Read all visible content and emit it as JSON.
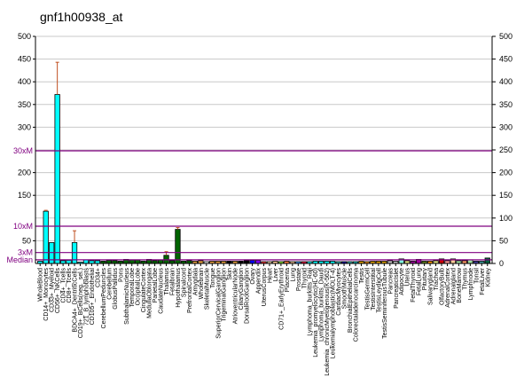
{
  "chart_data": {
    "type": "bar",
    "title": "gnf1h00938_at",
    "ylim": [
      0,
      500
    ],
    "yticks_left": [
      "500",
      "450",
      "400",
      "350",
      "300",
      "200",
      "150",
      "50"
    ],
    "yticks_left_values": [
      500,
      450,
      400,
      350,
      300,
      200,
      150,
      50
    ],
    "yticks_right": [
      "500",
      "450",
      "400",
      "350",
      "300",
      "250",
      "200",
      "150",
      "100",
      "50",
      "0"
    ],
    "yticks_right_values": [
      500,
      450,
      400,
      350,
      300,
      250,
      200,
      150,
      100,
      50,
      0
    ],
    "grid": true,
    "reference_lines": [
      {
        "label": "30xM",
        "value": 248
      },
      {
        "label": "10xM",
        "value": 82
      },
      {
        "label": "3xM",
        "value": 24
      },
      {
        "label": "Median",
        "value": 8
      }
    ],
    "reference_color": "#800080",
    "categories": [
      "WholeBlood",
      "CD14+_Monocytes",
      "CD33+_Myeloid",
      "CD56+_NKCells",
      "CD4+_Tcells",
      "CD8+_Tcells",
      "BDCA4+_DentriticCells",
      "CD19+_BCells(neg._sel.)",
      "721_B_lymphoblasts",
      "CD105+_Endothelial",
      "CD34+",
      "CerebellumPeduncles",
      "Cerebellum",
      "GlobusPallidus",
      "Pons",
      "SubthalamicNucleus",
      "TemporalLobe",
      "OccipitalLobe",
      "CingulateCortex",
      "MedullaOblongata",
      "ParietalLobe",
      "CaudateNucleus",
      "Thalamus",
      "Fetalbrain",
      "Hypothalamus",
      "Spinalcord",
      "PrefrontalCortex",
      "Amygdala",
      "Wholebrain",
      "SkeletalMuscle",
      "Tongue",
      "SuperiorCervicalGanglion",
      "TrigeminalGanglion",
      "Skin",
      "AtrioventricularNode",
      "CiliaryGanglion",
      "DorsalRootGanglion",
      "Ovary",
      "Appendix",
      "UterusCorpus",
      "Heart",
      "Liver",
      "CD71+_EarlyErythroid",
      "Placenta",
      "Lung",
      "Prostate",
      "Thyroid",
      "Lymphoma_burkitts_Raji",
      "Leukemia_promyelocytic(HL-60)",
      "Lymphoma_burkitts_Daudi",
      "Leukemia_chronicMyelogenous(K-562)",
      "Leukemialymphoblastic(MOLT-4)",
      "CardiacMyocytes",
      "SmoothMuscle",
      "BronchialEpithelialCells",
      "Colorectaladenocarcinoma",
      "Testis",
      "TestisGermCell",
      "TestisInterstitial",
      "TestisLeydigCell",
      "TestisSeminiferousTubule",
      "Pancreas",
      "PancreaticIslet",
      "Adipocyte",
      "Uterus",
      "FetalThyroid",
      "FetalLung",
      "Pituitary",
      "Salivarygland",
      "Trachea",
      "OlfactoryBulb",
      "AdrenalCortex",
      "Adrenalgland",
      "BoneMarrow",
      "Thymus",
      "Lymphnode",
      "Tonsil",
      "FetalLiver",
      "Kidney"
    ],
    "values": [
      5,
      115,
      46,
      372,
      6,
      7,
      46,
      3,
      8,
      6,
      6,
      5,
      7,
      6,
      5,
      9,
      8,
      8,
      5,
      9,
      6,
      8,
      18,
      6,
      75,
      5,
      6,
      5,
      6,
      4,
      5,
      5,
      5,
      5,
      5,
      5,
      6,
      7,
      7,
      4,
      4,
      5,
      4,
      5,
      4,
      4,
      4,
      4,
      5,
      5,
      5,
      5,
      4,
      4,
      4,
      4,
      5,
      4,
      5,
      5,
      5,
      6,
      5,
      10,
      6,
      5,
      9,
      5,
      5,
      6,
      10,
      6,
      10,
      6,
      6,
      8,
      5,
      5,
      12
    ],
    "errors": {
      "1": 117,
      "3": 443,
      "6": 72,
      "22": 26,
      "24": 79
    },
    "colors": [
      "#00ffff",
      "#00ffff",
      "#00ffff",
      "#00ffff",
      "#00ffff",
      "#00ffff",
      "#00ffff",
      "#00ffff",
      "#00ffff",
      "#00ffff",
      "#00ffff",
      "#006400",
      "#006400",
      "#006400",
      "#006400",
      "#006400",
      "#006400",
      "#006400",
      "#006400",
      "#006400",
      "#006400",
      "#006400",
      "#006400",
      "#006400",
      "#006400",
      "#006400",
      "#006400",
      "#e8a040",
      "#e8a040",
      "#ffffff",
      "#e8a040",
      "#e8a040",
      "#e8a040",
      "#000000",
      "#e8a040",
      "#000000",
      "#000000",
      "#0000ff",
      "#8000ff",
      "#ff3333",
      "#ffe0b0",
      "#ffcc99",
      "#99ff33",
      "#ff8040",
      "#ffcc99",
      "#40a0ff",
      "#ff0040",
      "#00ffff",
      "#00ffff",
      "#00ffff",
      "#00ffff",
      "#00ffff",
      "#40c0c0",
      "#0000aa",
      "#40c0c0",
      "#00c0c0",
      "#e0a000",
      "#ff9900",
      "#e0a000",
      "#e0a000",
      "#e0a000",
      "#c0c0c0",
      "#c0c0c0",
      "#80ffe0",
      "#e0e080",
      "#a000a0",
      "#a000a0",
      "#608020",
      "#ff9900",
      "#e0e080",
      "#cc0000",
      "#ff9999",
      "#ffcc99",
      "#a0e0a0",
      "#ff9966",
      "#a0e0a0",
      "#4040a0",
      "#40a0a0",
      "#006040"
    ]
  }
}
